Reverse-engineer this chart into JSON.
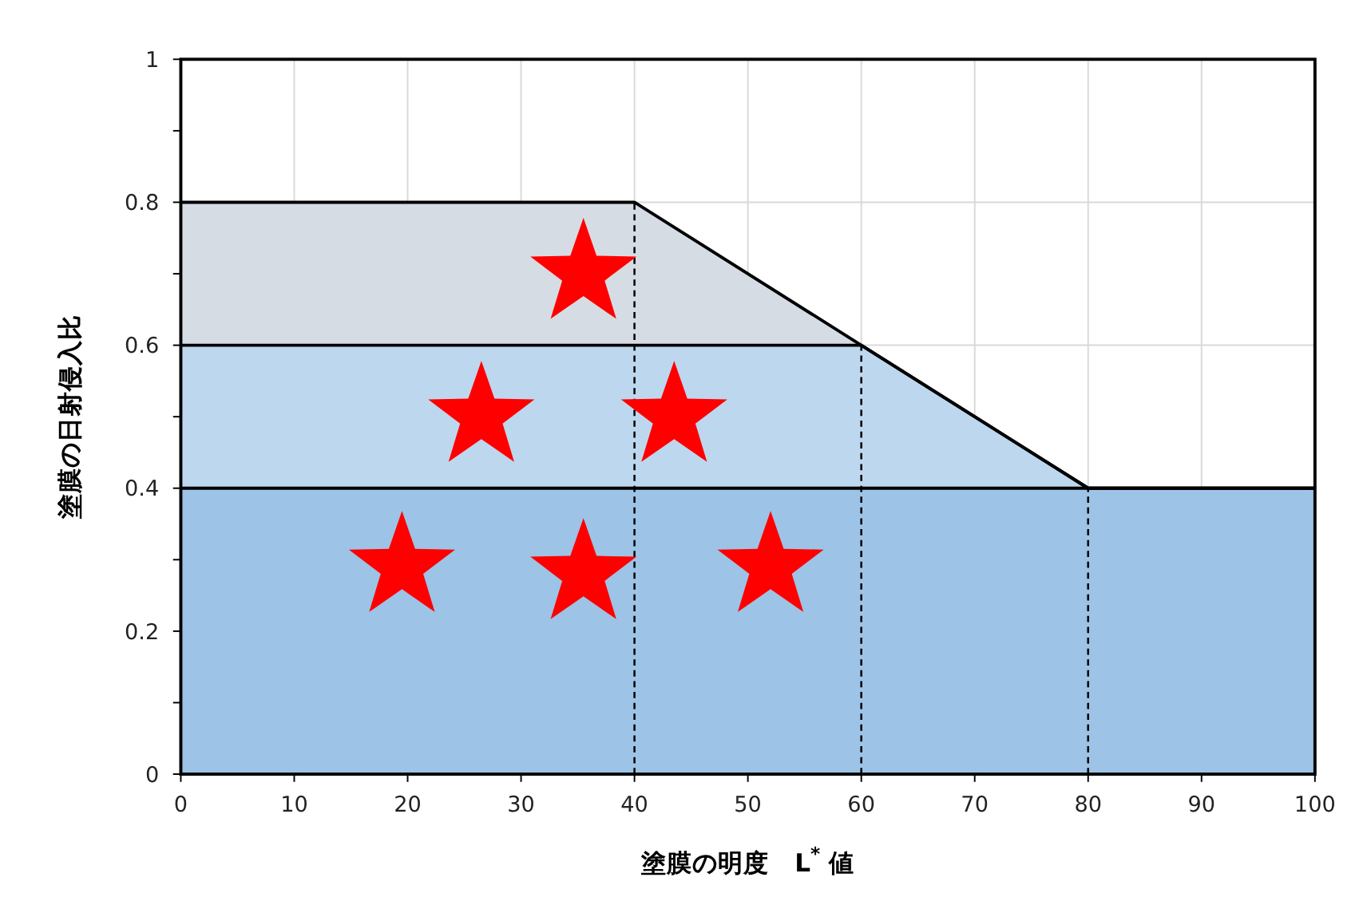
{
  "chart_data": {
    "type": "area",
    "stacked": true,
    "xlabel": "塗膜の明度　L$^{*}$値",
    "ylabel": "塗膜の日射侵入比",
    "xlim": [
      0,
      100
    ],
    "xticks": [
      0,
      10,
      20,
      30,
      40,
      50,
      60,
      70,
      80,
      90,
      100
    ],
    "ylim": [
      0,
      1
    ],
    "yticks": [
      0,
      {
        "value": 0.1,
        "label": null
      },
      0.2,
      {
        "value": 0.3,
        "label": null
      },
      0.4,
      {
        "value": 0.5,
        "label": null
      },
      0.6,
      {
        "value": 0.7,
        "label": null
      },
      0.8,
      {
        "value": 0.9,
        "label": null
      },
      1
    ],
    "grid": true,
    "x": [
      0,
      40,
      60,
      80,
      100
    ],
    "series": [
      {
        "color": "#9dc3e6",
        "values": [
          0.4,
          0.4,
          0.4,
          0.4,
          0.4
        ]
      },
      {
        "color": "#bdd7ee",
        "values": [
          0.2,
          0.2,
          0.2,
          0,
          0
        ]
      },
      {
        "color": "#d6dce4",
        "values": [
          0.2,
          0.2,
          0,
          0,
          0
        ]
      },
      {
        "type": "scatter",
        "marker": "star",
        "color": "#ff0000",
        "x": [
          19.5,
          35.5,
          52,
          26.5,
          43.5,
          35.5
        ],
        "values": [
          0.29,
          0.28,
          0.29,
          0.5,
          0.5,
          0.7
        ]
      }
    ],
    "ref_lines": [
      {
        "axis": "x",
        "value": 40,
        "color": "#000000",
        "line_style": "dashed"
      },
      {
        "axis": "x",
        "value": 60,
        "color": "#000000",
        "line_style": "dashed"
      },
      {
        "axis": "x",
        "value": 80,
        "color": "#000000",
        "line_style": "dashed"
      }
    ]
  }
}
